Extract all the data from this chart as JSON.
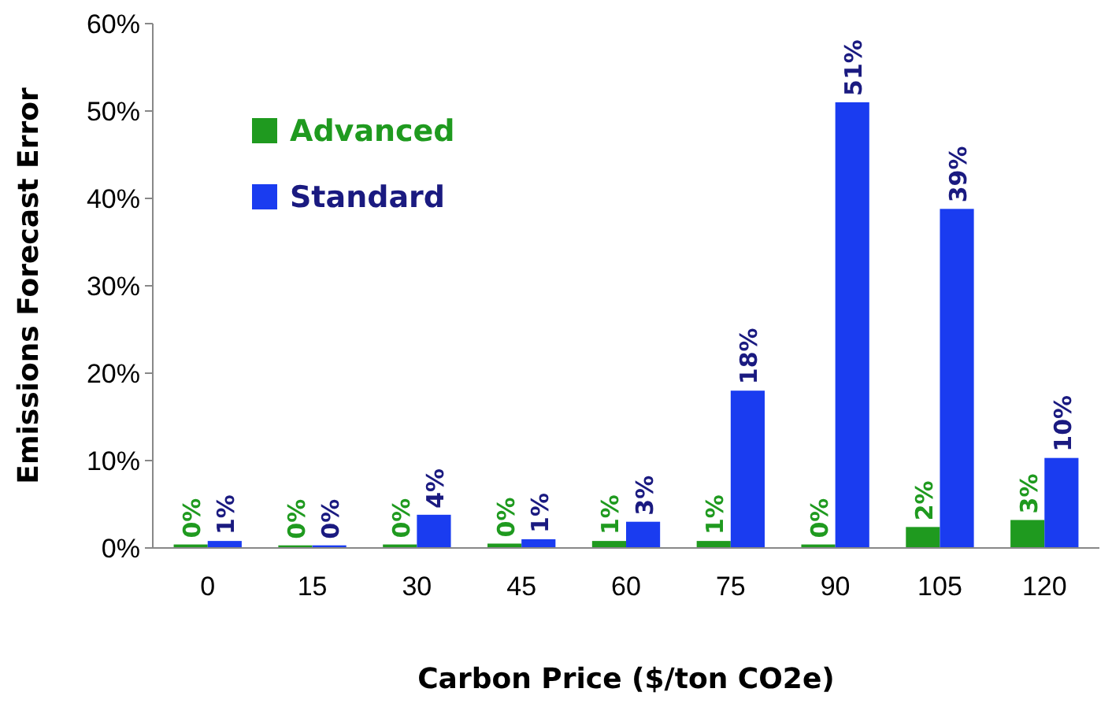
{
  "chart_data": {
    "type": "bar",
    "xlabel": "Carbon Price ($/ton CO2e)",
    "ylabel": "Emissions Forecast Error",
    "categories": [
      "0",
      "15",
      "30",
      "45",
      "60",
      "75",
      "90",
      "105",
      "120"
    ],
    "series": [
      {
        "name": "Advanced",
        "color": "#1f9a1f",
        "values": [
          0.4,
          0.3,
          0.4,
          0.5,
          0.8,
          0.8,
          0.4,
          2.4,
          3.2
        ],
        "value_labels": [
          "0%",
          "0%",
          "0%",
          "0%",
          "1%",
          "1%",
          "0%",
          "2%",
          "3%"
        ]
      },
      {
        "name": "Standard",
        "color": "#1a3cf0",
        "values": [
          0.8,
          0.3,
          3.8,
          1,
          3,
          18,
          51,
          38.8,
          10.3
        ],
        "value_labels": [
          "1%",
          "0%",
          "4%",
          "1%",
          "3%",
          "18%",
          "51%",
          "39%",
          "10%"
        ]
      }
    ],
    "ylim": [
      0,
      60
    ],
    "yticks": [
      {
        "value": 0,
        "label": "0%"
      },
      {
        "value": 10,
        "label": "10%"
      },
      {
        "value": 20,
        "label": "20%"
      },
      {
        "value": 30,
        "label": "30%"
      },
      {
        "value": 40,
        "label": "40%"
      },
      {
        "value": 50,
        "label": "50%"
      },
      {
        "value": 60,
        "label": "60%"
      }
    ],
    "legend": "top left"
  }
}
